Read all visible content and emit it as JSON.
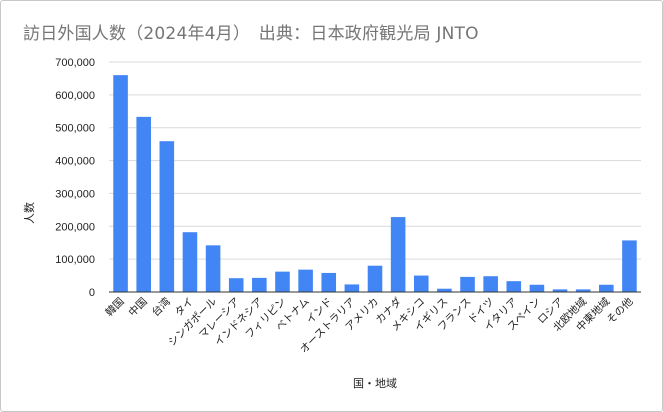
{
  "chart_data": {
    "type": "bar",
    "title": "訪日外国人数（2024年4月）　出典：日本政府観光局 JNTO",
    "xlabel": "国・地域",
    "ylabel": "人数",
    "ylim": [
      0,
      700000
    ],
    "yticks": [
      0,
      100000,
      200000,
      300000,
      400000,
      500000,
      600000,
      700000
    ],
    "ytick_labels": [
      "0",
      "100,000",
      "200,000",
      "300,000",
      "400,000",
      "500,000",
      "600,000",
      "700,000"
    ],
    "grid": true,
    "bar_color": "#4285f4",
    "categories": [
      "韓国",
      "中国",
      "台湾",
      "タイ",
      "シンガポール",
      "マレーシア",
      "インドネシア",
      "フィリピン",
      "ベトナム",
      "インド",
      "オーストラリア",
      "アメリカ",
      "カナダ",
      "メキシコ",
      "イギリス",
      "フランス",
      "ドイツ",
      "イタリア",
      "スペイン",
      "ロシア",
      "北欧地域",
      "中東地域",
      "その他"
    ],
    "values": [
      660000,
      533000,
      459000,
      182000,
      142000,
      42000,
      43000,
      62000,
      68000,
      58000,
      23000,
      80000,
      228000,
      50000,
      10000,
      46000,
      48000,
      33000,
      22000,
      8000,
      8000,
      22000,
      157000
    ]
  }
}
